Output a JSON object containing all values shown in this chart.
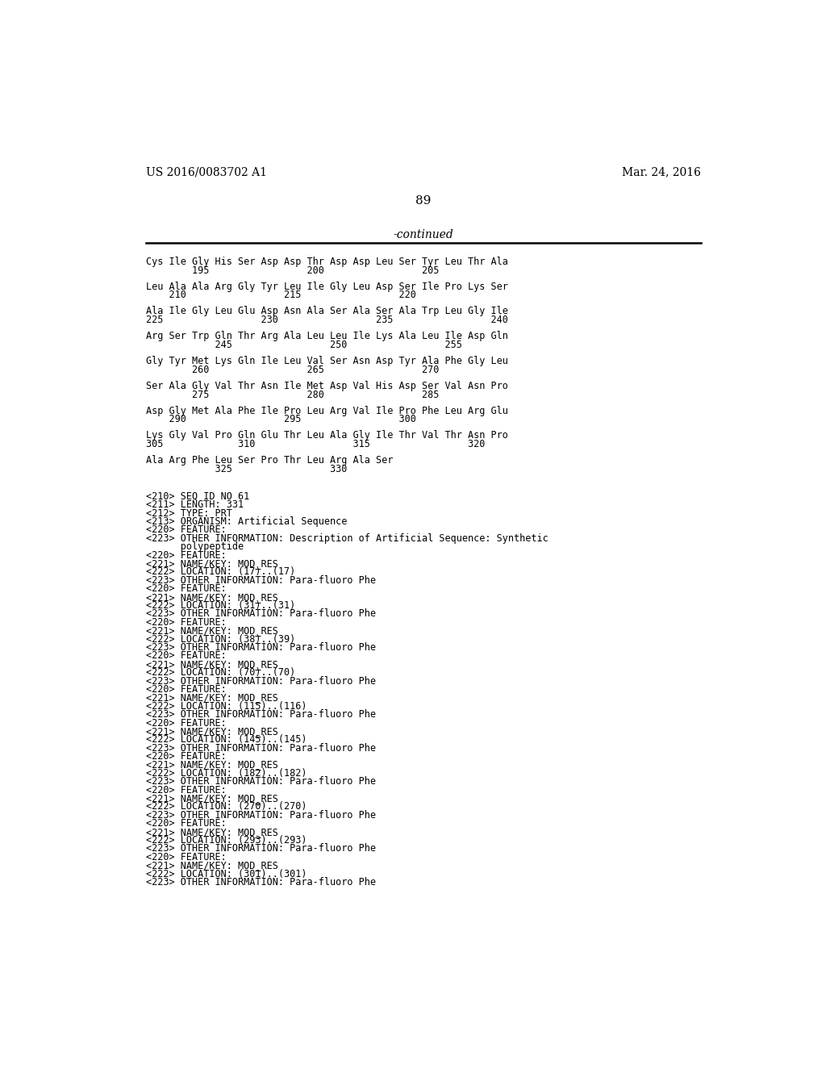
{
  "header_left": "US 2016/0083702 A1",
  "header_right": "Mar. 24, 2016",
  "page_number": "89",
  "continued_text": "-continued",
  "background_color": "#ffffff",
  "text_color": "#000000",
  "mono_font": "DejaVu Sans Mono",
  "serif_font": "DejaVu Serif",
  "sequence_blocks": [
    {
      "aa": "Cys Ile Gly His Ser Asp Asp Thr Asp Asp Leu Ser Tyr Leu Thr Ala",
      "num": "        195                 200                 205"
    },
    {
      "aa": "Leu Ala Ala Arg Gly Tyr Leu Ile Gly Leu Asp Ser Ile Pro Lys Ser",
      "num": "    210                 215                 220"
    },
    {
      "aa": "Ala Ile Gly Leu Glu Asp Asn Ala Ser Ala Ser Ala Trp Leu Gly Ile",
      "num": "225                 230                 235                 240"
    },
    {
      "aa": "Arg Ser Trp Gln Thr Arg Ala Leu Leu Ile Lys Ala Leu Ile Asp Gln",
      "num": "            245                 250                 255"
    },
    {
      "aa": "Gly Tyr Met Lys Gln Ile Leu Val Ser Asn Asp Tyr Ala Phe Gly Leu",
      "num": "        260                 265                 270"
    },
    {
      "aa": "Ser Ala Gly Val Thr Asn Ile Met Asp Val His Asp Ser Val Asn Pro",
      "num": "        275                 280                 285"
    },
    {
      "aa": "Asp Gly Met Ala Phe Ile Pro Leu Arg Val Ile Pro Phe Leu Arg Glu",
      "num": "    290                 295                 300"
    },
    {
      "aa": "Lys Gly Val Pro Gln Glu Thr Leu Ala Gly Ile Thr Val Thr Asn Pro",
      "num": "305             310                 315                 320"
    },
    {
      "aa": "Ala Arg Phe Leu Ser Pro Thr Leu Arg Ala Ser",
      "num": "            325                 330"
    }
  ],
  "metadata_lines": [
    "<210> SEQ ID NO 61",
    "<211> LENGTH: 331",
    "<212> TYPE: PRT",
    "<213> ORGANISM: Artificial Sequence",
    "<220> FEATURE:",
    "<223> OTHER INFORMATION: Description of Artificial Sequence: Synthetic",
    "      polypeptide",
    "<220> FEATURE:",
    "<221> NAME/KEY: MOD_RES",
    "<222> LOCATION: (17)..(17)",
    "<223> OTHER INFORMATION: Para-fluoro Phe",
    "<220> FEATURE:",
    "<221> NAME/KEY: MOD_RES",
    "<222> LOCATION: (31)..(31)",
    "<223> OTHER INFORMATION: Para-fluoro Phe",
    "<220> FEATURE:",
    "<221> NAME/KEY: MOD_RES",
    "<222> LOCATION: (38)..(39)",
    "<223> OTHER INFORMATION: Para-fluoro Phe",
    "<220> FEATURE:",
    "<221> NAME/KEY: MOD_RES",
    "<222> LOCATION: (70)..(70)",
    "<223> OTHER INFORMATION: Para-fluoro Phe",
    "<220> FEATURE:",
    "<221> NAME/KEY: MOD_RES",
    "<222> LOCATION: (115)..(116)",
    "<223> OTHER INFORMATION: Para-fluoro Phe",
    "<220> FEATURE:",
    "<221> NAME/KEY: MOD_RES",
    "<222> LOCATION: (145)..(145)",
    "<223> OTHER INFORMATION: Para-fluoro Phe",
    "<220> FEATURE:",
    "<221> NAME/KEY: MOD_RES",
    "<222> LOCATION: (182)..(182)",
    "<223> OTHER INFORMATION: Para-fluoro Phe",
    "<220> FEATURE:",
    "<221> NAME/KEY: MOD_RES",
    "<222> LOCATION: (270)..(270)",
    "<223> OTHER INFORMATION: Para-fluoro Phe",
    "<220> FEATURE:",
    "<221> NAME/KEY: MOD_RES",
    "<222> LOCATION: (293)..(293)",
    "<223> OTHER INFORMATION: Para-fluoro Phe",
    "<220> FEATURE:",
    "<221> NAME/KEY: MOD_RES",
    "<222> LOCATION: (301)..(301)",
    "<223> OTHER INFORMATION: Para-fluoro Phe"
  ]
}
